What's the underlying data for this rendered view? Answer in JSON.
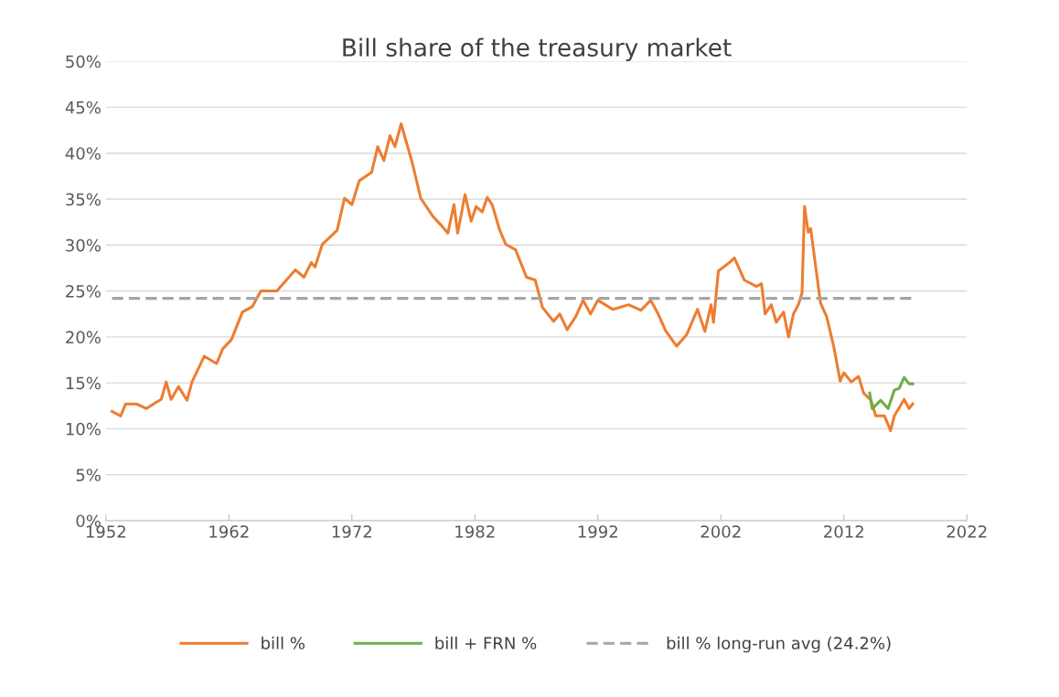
{
  "chart_data": {
    "type": "line",
    "title": "Bill share of the treasury market",
    "xlim": [
      1952,
      2022
    ],
    "xticks": [
      1952,
      1962,
      1972,
      1982,
      1992,
      2002,
      2012,
      2022
    ],
    "ylim": [
      0,
      50
    ],
    "yticks": [
      {
        "value": 0,
        "label": "0%"
      },
      {
        "value": 5,
        "label": "5%"
      },
      {
        "value": 10,
        "label": "10%"
      },
      {
        "value": 15,
        "label": "15%"
      },
      {
        "value": 20,
        "label": "20%"
      },
      {
        "value": 25,
        "label": "25%"
      },
      {
        "value": 30,
        "label": "30%"
      },
      {
        "value": 35,
        "label": "35%"
      },
      {
        "value": 40,
        "label": "40%"
      },
      {
        "value": 45,
        "label": "45%"
      },
      {
        "value": 50,
        "label": "50%"
      }
    ],
    "grid": "y",
    "legend": "bottom",
    "marker": "none",
    "line_style": "solid",
    "series": [
      {
        "name": "bill %",
        "color": "#ed7d31",
        "x": [
          1952.5,
          1953.2,
          1953.6,
          1954.5,
          1955.3,
          1956.1,
          1956.5,
          1956.9,
          1957.3,
          1957.9,
          1958.6,
          1959.0,
          1960.0,
          1961.0,
          1961.5,
          1962.2,
          1963.1,
          1963.9,
          1964.6,
          1965.9,
          1967.4,
          1968.1,
          1968.7,
          1969.0,
          1969.6,
          1970.8,
          1971.4,
          1972.0,
          1972.6,
          1973.6,
          1974.1,
          1974.6,
          1975.1,
          1975.5,
          1976.0,
          1976.9,
          1977.6,
          1978.6,
          1979.3,
          1979.8,
          1980.3,
          1980.6,
          1981.2,
          1981.7,
          1982.1,
          1982.6,
          1983.0,
          1983.4,
          1984.0,
          1984.5,
          1985.3,
          1986.2,
          1986.9,
          1987.5,
          1988.4,
          1988.9,
          1989.5,
          1990.2,
          1990.8,
          1991.4,
          1992.0,
          1993.2,
          1994.5,
          1995.5,
          1996.3,
          1996.9,
          1997.5,
          1998.4,
          1999.2,
          2000.1,
          2000.7,
          2001.2,
          2001.4,
          2001.8,
          2002.7,
          2003.1,
          2003.9,
          2004.9,
          2005.3,
          2005.6,
          2006.1,
          2006.5,
          2007.1,
          2007.5,
          2007.9,
          2008.3,
          2008.6,
          2008.8,
          2009.1,
          2009.3,
          2010.1,
          2010.6,
          2011.2,
          2011.7,
          2012.0,
          2012.6,
          2013.2,
          2013.6,
          2014.2,
          2014.6,
          2015.3,
          2015.8,
          2016.1,
          2016.9,
          2017.3,
          2017.6
        ],
        "values": [
          11.9,
          11.4,
          12.7,
          12.7,
          12.2,
          12.9,
          13.2,
          15.1,
          13.2,
          14.6,
          13.1,
          15.1,
          17.9,
          17.1,
          18.7,
          19.7,
          22.7,
          23.3,
          25.0,
          25.0,
          27.3,
          26.5,
          28.1,
          27.6,
          30.1,
          31.6,
          35.1,
          34.4,
          37.0,
          37.9,
          40.7,
          39.2,
          41.9,
          40.7,
          43.2,
          39.0,
          35.1,
          33.1,
          32.1,
          31.3,
          34.4,
          31.3,
          35.5,
          32.6,
          34.2,
          33.6,
          35.2,
          34.4,
          31.7,
          30.1,
          29.5,
          26.5,
          26.2,
          23.2,
          21.7,
          22.5,
          20.8,
          22.2,
          24.0,
          22.5,
          24.0,
          23.0,
          23.5,
          22.9,
          24.0,
          22.5,
          20.7,
          19.0,
          20.2,
          23.0,
          20.6,
          23.5,
          21.6,
          27.2,
          28.1,
          28.6,
          26.2,
          25.5,
          25.8,
          22.5,
          23.5,
          21.6,
          22.7,
          20.0,
          22.5,
          23.5,
          24.8,
          34.2,
          31.4,
          31.8,
          23.7,
          22.2,
          18.8,
          15.2,
          16.1,
          15.1,
          15.7,
          13.9,
          13.1,
          11.4,
          11.4,
          9.8,
          11.4,
          13.2,
          12.2,
          12.7
        ]
      },
      {
        "name": "bill + FRN %",
        "color": "#70ad47",
        "x": [
          2014.1,
          2014.3,
          2015.0,
          2015.6,
          2016.1,
          2016.5,
          2016.9,
          2017.3,
          2017.6
        ],
        "values": [
          13.9,
          12.2,
          13.1,
          12.2,
          14.2,
          14.4,
          15.6,
          14.9,
          14.9
        ]
      }
    ],
    "ref_lines": [
      {
        "axis": "y",
        "value": 24.2,
        "label": "bill % long-run avg (24.2%)",
        "color": "#a5a5a5",
        "line_style": "dashed"
      }
    ]
  }
}
